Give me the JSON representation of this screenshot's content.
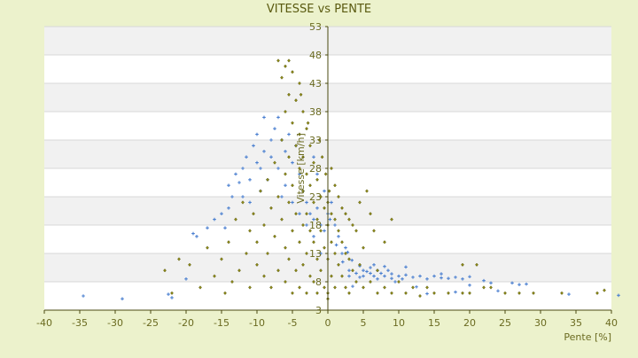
{
  "chart_data": {
    "type": "scatter",
    "title": "VITESSE vs PENTE",
    "xlabel": "Pente [%]",
    "ylabel": "Vitesse [km/h]",
    "xlim": [
      -40,
      40
    ],
    "ylim": [
      3,
      53
    ],
    "x_ticks": [
      -40,
      -35,
      -30,
      -25,
      -20,
      -15,
      -10,
      -5,
      0,
      5,
      10,
      15,
      20,
      25,
      30,
      35,
      40
    ],
    "y_ticks": [
      3,
      8,
      13,
      18,
      23,
      28,
      33,
      38,
      43,
      48,
      53
    ],
    "grid": "horizontal alternating bands",
    "legend": "none",
    "series": [
      {
        "color": "#4a7fd0",
        "marker": "plus",
        "points": [
          [
            -34.5,
            5.5
          ],
          [
            -29,
            5
          ],
          [
            -22.5,
            5.8
          ],
          [
            -22,
            5.2
          ],
          [
            -20,
            8.5
          ],
          [
            -19,
            16.5
          ],
          [
            -18.5,
            16
          ],
          [
            -17,
            17.5
          ],
          [
            -16,
            19
          ],
          [
            -15,
            20
          ],
          [
            -14.5,
            17.5
          ],
          [
            -14,
            21
          ],
          [
            -14,
            25
          ],
          [
            -13.5,
            23
          ],
          [
            -13,
            27
          ],
          [
            -12.5,
            25.5
          ],
          [
            -12,
            28
          ],
          [
            -12,
            23
          ],
          [
            -11.5,
            30
          ],
          [
            -11,
            26
          ],
          [
            -11,
            22
          ],
          [
            -10.5,
            32
          ],
          [
            -10,
            29
          ],
          [
            -10,
            34
          ],
          [
            -9.5,
            28
          ],
          [
            -9.5,
            24
          ],
          [
            -9,
            37
          ],
          [
            -9,
            31
          ],
          [
            -8.5,
            26
          ],
          [
            -8,
            33
          ],
          [
            -8,
            30
          ],
          [
            -7.5,
            35
          ],
          [
            -7,
            28
          ],
          [
            -7,
            37
          ],
          [
            -6.5,
            33
          ],
          [
            -6.5,
            23
          ],
          [
            -6,
            31
          ],
          [
            -6,
            25
          ],
          [
            -5.5,
            34
          ],
          [
            -5,
            29
          ],
          [
            -5,
            22
          ],
          [
            -4.5,
            32
          ],
          [
            -4,
            27
          ],
          [
            -4,
            20
          ],
          [
            -3.5,
            24
          ],
          [
            -3,
            18
          ],
          [
            -3,
            22
          ],
          [
            -2.5,
            20
          ],
          [
            -2,
            19
          ],
          [
            -2,
            16
          ],
          [
            -1.5,
            21
          ],
          [
            -1,
            18
          ],
          [
            -1,
            13
          ],
          [
            -0.5,
            17
          ],
          [
            0,
            20
          ],
          [
            0.5,
            22
          ],
          [
            1,
            18
          ],
          [
            1.5,
            16
          ],
          [
            2,
            13
          ],
          [
            2.5,
            14
          ],
          [
            3,
            10
          ],
          [
            3,
            9
          ],
          [
            4,
            9.5
          ],
          [
            4.5,
            8.8
          ],
          [
            5,
            9
          ],
          [
            5,
            10
          ],
          [
            5.5,
            9.8
          ],
          [
            6,
            9.5
          ],
          [
            6,
            10.5
          ],
          [
            6.5,
            9
          ],
          [
            7,
            8.5
          ],
          [
            7,
            10
          ],
          [
            7.5,
            9.5
          ],
          [
            8,
            9
          ],
          [
            8.5,
            10
          ],
          [
            9,
            8.6
          ],
          [
            9,
            9.4
          ],
          [
            10,
            9
          ],
          [
            10.5,
            8.5
          ],
          [
            11,
            9.2
          ],
          [
            12,
            8.8
          ],
          [
            13,
            9
          ],
          [
            14,
            8.5
          ],
          [
            15,
            9
          ],
          [
            16,
            8.7
          ],
          [
            17,
            8.6
          ],
          [
            18,
            8.8
          ],
          [
            19,
            8.5
          ],
          [
            20,
            8.9
          ],
          [
            22,
            8.2
          ],
          [
            23,
            7.8
          ],
          [
            24,
            6.4
          ],
          [
            26,
            7.8
          ],
          [
            27,
            7.5
          ],
          [
            28,
            7.6
          ],
          [
            34,
            5.8
          ],
          [
            41,
            5.6
          ],
          [
            3.5,
            7.2
          ],
          [
            4.5,
            10.8
          ],
          [
            6.5,
            11
          ],
          [
            8,
            10.7
          ],
          [
            9.5,
            8
          ],
          [
            11,
            10.6
          ],
          [
            12.5,
            7.1
          ],
          [
            14,
            5.9
          ],
          [
            16,
            9.4
          ],
          [
            18,
            6.2
          ],
          [
            20,
            7.4
          ],
          [
            -2,
            30
          ],
          [
            -1.5,
            27
          ],
          [
            -0.5,
            24
          ],
          [
            0.3,
            19
          ],
          [
            1.2,
            14.5
          ],
          [
            2.1,
            11.5
          ],
          [
            2.8,
            13.2
          ],
          [
            3.4,
            11.8
          ]
        ]
      },
      {
        "color": "#8e8a18",
        "marker": "diamond",
        "points": [
          [
            -23,
            10
          ],
          [
            -22,
            6
          ],
          [
            -21,
            12
          ],
          [
            -19.5,
            11
          ],
          [
            -18,
            7
          ],
          [
            -17,
            14
          ],
          [
            -16,
            9
          ],
          [
            -15,
            12
          ],
          [
            -14.5,
            6
          ],
          [
            -14,
            15
          ],
          [
            -13.5,
            8
          ],
          [
            -13,
            19
          ],
          [
            -12.5,
            10
          ],
          [
            -12,
            22
          ],
          [
            -11.5,
            13
          ],
          [
            -11,
            7
          ],
          [
            -11,
            17
          ],
          [
            -10.5,
            20
          ],
          [
            -10,
            11
          ],
          [
            -10,
            15
          ],
          [
            -9.5,
            24
          ],
          [
            -9,
            9
          ],
          [
            -9,
            18
          ],
          [
            -8.5,
            26
          ],
          [
            -8.5,
            13
          ],
          [
            -8,
            21
          ],
          [
            -8,
            7
          ],
          [
            -7.5,
            29
          ],
          [
            -7.5,
            16
          ],
          [
            -7,
            47
          ],
          [
            -7,
            23
          ],
          [
            -7,
            10
          ],
          [
            -6.5,
            44
          ],
          [
            -6.5,
            33
          ],
          [
            -6.5,
            19
          ],
          [
            -6,
            46
          ],
          [
            -6,
            38
          ],
          [
            -6,
            27
          ],
          [
            -6,
            14
          ],
          [
            -6,
            8
          ],
          [
            -5.5,
            47
          ],
          [
            -5.5,
            41
          ],
          [
            -5.5,
            30
          ],
          [
            -5.5,
            22
          ],
          [
            -5.5,
            12
          ],
          [
            -5,
            45
          ],
          [
            -5,
            36
          ],
          [
            -5,
            25
          ],
          [
            -5,
            17
          ],
          [
            -5,
            6
          ],
          [
            -4.5,
            40
          ],
          [
            -4.5,
            32
          ],
          [
            -4.5,
            20
          ],
          [
            -4.5,
            10
          ],
          [
            -4,
            43
          ],
          [
            -4,
            34
          ],
          [
            -4,
            28
          ],
          [
            -4,
            15
          ],
          [
            -4,
            7
          ],
          [
            -3.5,
            38
          ],
          [
            -3.5,
            30
          ],
          [
            -3.5,
            24
          ],
          [
            -3.5,
            18
          ],
          [
            -3.5,
            11
          ],
          [
            -3,
            35
          ],
          [
            -3,
            27
          ],
          [
            -3,
            20
          ],
          [
            -3,
            13
          ],
          [
            -3,
            6
          ],
          [
            -2.5,
            32
          ],
          [
            -2.5,
            25
          ],
          [
            -2.5,
            17
          ],
          [
            -2.5,
            9
          ],
          [
            -2,
            29
          ],
          [
            -2,
            22
          ],
          [
            -2,
            15
          ],
          [
            -2,
            8
          ],
          [
            -1.5,
            26
          ],
          [
            -1.5,
            19
          ],
          [
            -1.5,
            12
          ],
          [
            -1.5,
            6
          ],
          [
            -1,
            23
          ],
          [
            -1,
            17
          ],
          [
            -1,
            10
          ],
          [
            -0.5,
            21
          ],
          [
            -0.5,
            14
          ],
          [
            -0.5,
            7
          ],
          [
            0,
            22
          ],
          [
            0,
            18
          ],
          [
            0,
            12
          ],
          [
            0,
            6
          ],
          [
            0,
            5
          ],
          [
            0.5,
            28
          ],
          [
            0.5,
            20
          ],
          [
            0.5,
            15
          ],
          [
            0.5,
            9
          ],
          [
            1,
            25
          ],
          [
            1,
            19
          ],
          [
            1,
            13
          ],
          [
            1,
            7
          ],
          [
            1.5,
            23
          ],
          [
            1.5,
            17
          ],
          [
            1.5,
            11
          ],
          [
            2,
            21
          ],
          [
            2,
            15
          ],
          [
            2,
            9
          ],
          [
            2.5,
            20
          ],
          [
            2.5,
            13
          ],
          [
            2.5,
            7
          ],
          [
            3,
            19
          ],
          [
            3,
            12
          ],
          [
            3,
            6
          ],
          [
            3.5,
            18
          ],
          [
            3.5,
            10
          ],
          [
            4,
            17
          ],
          [
            4,
            8
          ],
          [
            4.5,
            22
          ],
          [
            4.5,
            11
          ],
          [
            5,
            14
          ],
          [
            5,
            7
          ],
          [
            5.5,
            24
          ],
          [
            6,
            20
          ],
          [
            6,
            8
          ],
          [
            6.5,
            17
          ],
          [
            7,
            10
          ],
          [
            7,
            6
          ],
          [
            8,
            15
          ],
          [
            8,
            7
          ],
          [
            9,
            19
          ],
          [
            9,
            6
          ],
          [
            10,
            8
          ],
          [
            11,
            6
          ],
          [
            12,
            7
          ],
          [
            13,
            5.5
          ],
          [
            14,
            7
          ],
          [
            15,
            6
          ],
          [
            17,
            6
          ],
          [
            19,
            6
          ],
          [
            20,
            6
          ],
          [
            22,
            7
          ],
          [
            23,
            7
          ],
          [
            25,
            6
          ],
          [
            27,
            6
          ],
          [
            29,
            6
          ],
          [
            33,
            6
          ],
          [
            38,
            6
          ],
          [
            39,
            6.5
          ],
          [
            19,
            11
          ],
          [
            21,
            11
          ],
          [
            -1.2,
            33
          ],
          [
            -0.8,
            30
          ],
          [
            -0.3,
            27
          ],
          [
            0.2,
            24
          ],
          [
            -2.8,
            36
          ],
          [
            -3.8,
            41
          ]
        ]
      }
    ]
  }
}
